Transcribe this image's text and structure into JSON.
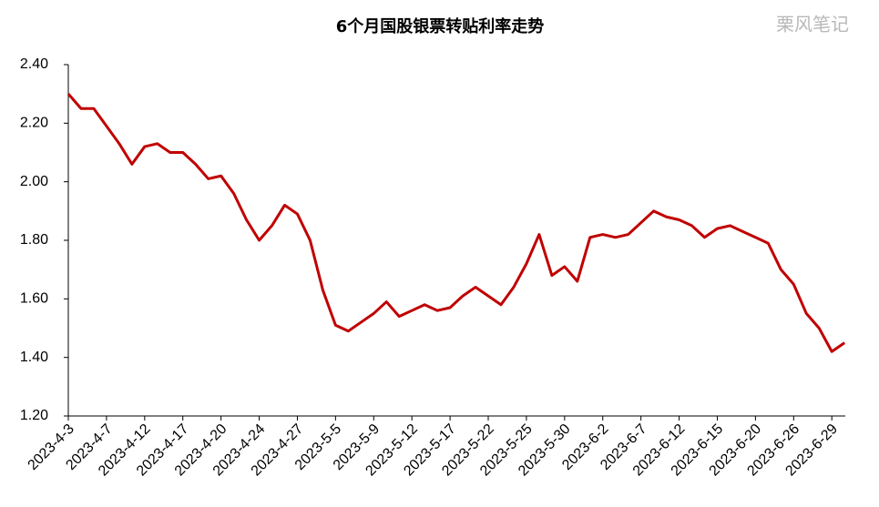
{
  "chart_data": {
    "type": "line",
    "title": "6个月国股银票转贴利率走势",
    "watermark": "栗风笔记",
    "categories": [
      "2023-4-3",
      null,
      null,
      "2023-4-7",
      null,
      null,
      "2023-4-12",
      null,
      null,
      "2023-4-17",
      null,
      null,
      "2023-4-20",
      null,
      null,
      "2023-4-24",
      null,
      null,
      "2023-4-27",
      null,
      null,
      "2023-5-5",
      null,
      null,
      "2023-5-9",
      null,
      null,
      "2023-5-12",
      null,
      null,
      "2023-5-17",
      null,
      null,
      "2023-5-22",
      null,
      null,
      "2023-5-25",
      null,
      null,
      "2023-5-30",
      null,
      null,
      "2023-6-2",
      null,
      null,
      "2023-6-7",
      null,
      null,
      "2023-6-12",
      null,
      null,
      "2023-6-15",
      null,
      null,
      "2023-6-20",
      null,
      null,
      "2023-6-26",
      null,
      null,
      "2023-6-29",
      null
    ],
    "series": [
      {
        "color": "#c00000",
        "values": [
          2.3,
          2.25,
          2.25,
          2.19,
          2.13,
          2.06,
          2.12,
          2.13,
          2.1,
          2.1,
          2.06,
          2.01,
          2.02,
          1.96,
          1.87,
          1.8,
          1.85,
          1.92,
          1.89,
          1.8,
          1.63,
          1.51,
          1.49,
          1.52,
          1.55,
          1.59,
          1.54,
          1.56,
          1.58,
          1.56,
          1.57,
          1.61,
          1.64,
          1.61,
          1.58,
          1.64,
          1.72,
          1.82,
          1.68,
          1.71,
          1.66,
          1.81,
          1.82,
          1.81,
          1.82,
          1.86,
          1.9,
          1.88,
          1.87,
          1.85,
          1.81,
          1.84,
          1.85,
          1.83,
          1.81,
          1.79,
          1.7,
          1.65,
          1.55,
          1.5,
          1.42,
          1.45
        ]
      }
    ],
    "ylim": [
      1.2,
      2.4
    ],
    "yticks": [
      {
        "value": 1.2,
        "label": "1.20"
      },
      {
        "value": 1.4,
        "label": "1.40"
      },
      {
        "value": 1.6,
        "label": "1.60"
      },
      {
        "value": 1.8,
        "label": "1.80"
      },
      {
        "value": 2.0,
        "label": "2.00"
      },
      {
        "value": 2.2,
        "label": "2.20"
      },
      {
        "value": 2.4,
        "label": "2.40"
      }
    ],
    "grid": false
  }
}
